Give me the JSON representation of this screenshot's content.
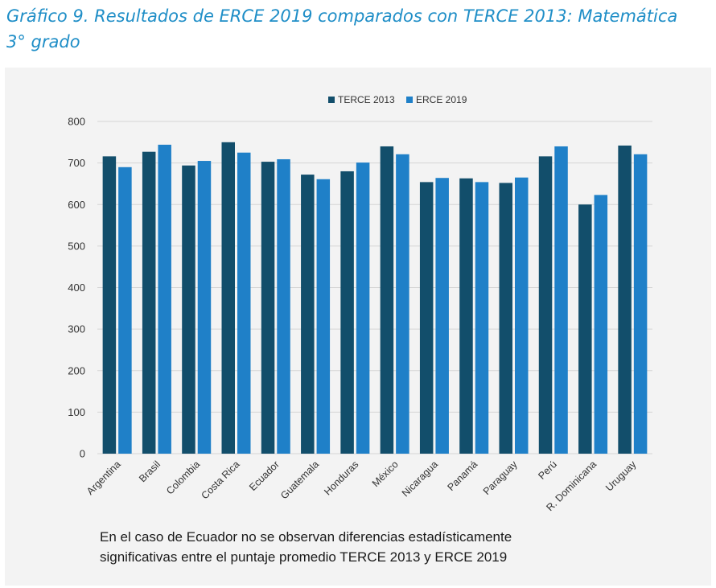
{
  "title_line1": "Gráfico 9. Resultados de ERCE 2019 comparados con TERCE 2013: Matemática",
  "title_line2": "3° grado",
  "note": {
    "line1": "En el caso de Ecuador no se observan diferencias estadísticamente",
    "line2": "significativas entre el puntaje promedio TERCE 2013 y ERCE 2019"
  },
  "chart_data": {
    "type": "bar",
    "categories": [
      "Argentina",
      "Brasil",
      "Colombia",
      "Costa Rica",
      "Ecuador",
      "Guatemala",
      "Honduras",
      "México",
      "Nicaragua",
      "Panamá",
      "Paraguay",
      "Perú",
      "R. Dominicana",
      "Uruguay"
    ],
    "series": [
      {
        "name": "TERCE 2013",
        "color": "#124e6b",
        "values": [
          716,
          727,
          694,
          750,
          703,
          672,
          680,
          740,
          654,
          663,
          652,
          716,
          600,
          742
        ]
      },
      {
        "name": "ERCE 2019",
        "color": "#1f80c8",
        "values": [
          690,
          744,
          705,
          725,
          709,
          661,
          701,
          721,
          664,
          654,
          665,
          740,
          623,
          721
        ]
      }
    ],
    "ylim": [
      0,
      800
    ],
    "yticks": [
      0,
      100,
      200,
      300,
      400,
      500,
      600,
      700,
      800
    ],
    "grid": true,
    "legend": "top-center",
    "xlabel": "",
    "ylabel": ""
  }
}
